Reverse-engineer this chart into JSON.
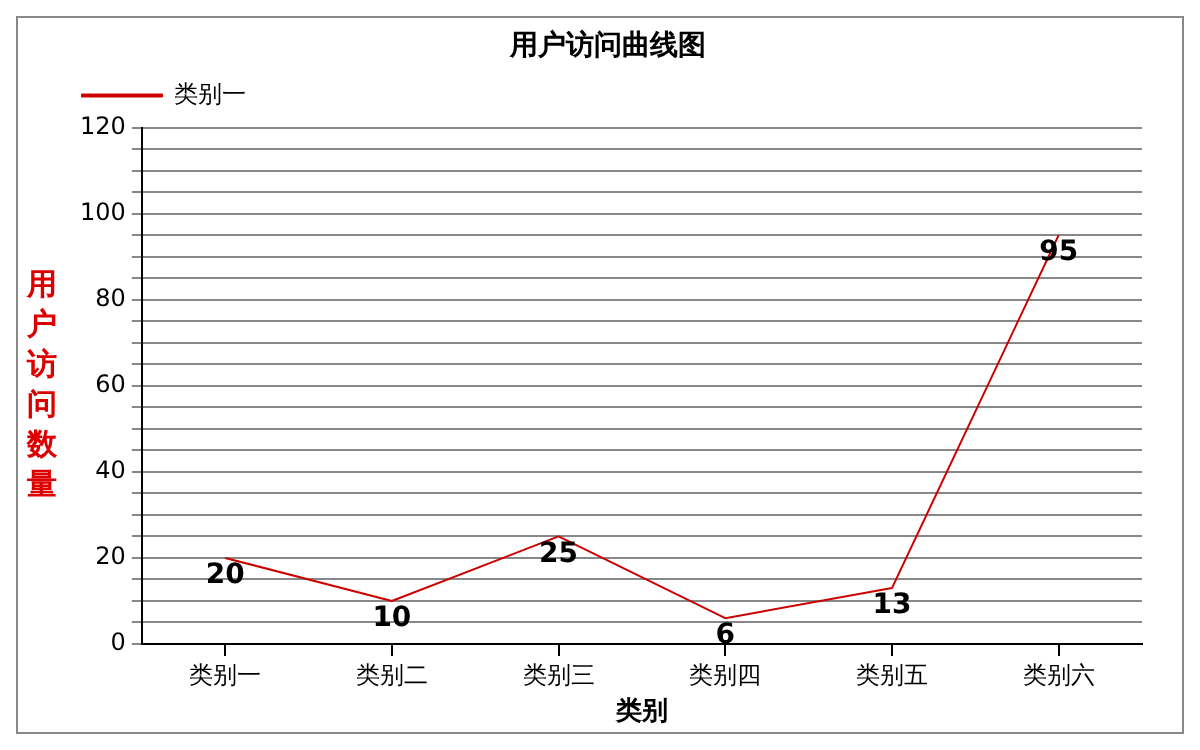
{
  "chart_data": {
    "type": "line",
    "title": "用户访问曲线图",
    "xlabel": "类别",
    "ylabel": "用户访问数量",
    "categories": [
      "类别一",
      "类别二",
      "类别三",
      "类别四",
      "类别五",
      "类别六"
    ],
    "series": [
      {
        "name": "类别一",
        "color": "#cc0000",
        "values": [
          20,
          10,
          25,
          6,
          13,
          95
        ]
      }
    ],
    "ylim": [
      0,
      120
    ],
    "yticks": [
      0,
      {
        "value": 5,
        "label": null
      },
      {
        "value": 10,
        "label": null
      },
      {
        "value": 15,
        "label": null
      },
      20,
      {
        "value": 25,
        "label": null
      },
      {
        "value": 30,
        "label": null
      },
      {
        "value": 35,
        "label": null
      },
      40,
      {
        "value": 45,
        "label": null
      },
      {
        "value": 50,
        "label": null
      },
      {
        "value": 55,
        "label": null
      },
      60,
      {
        "value": 65,
        "label": null
      },
      {
        "value": 70,
        "label": null
      },
      {
        "value": 75,
        "label": null
      },
      80,
      {
        "value": 85,
        "label": null
      },
      {
        "value": 90,
        "label": null
      },
      {
        "value": 95,
        "label": null
      },
      100,
      {
        "value": 105,
        "label": null
      },
      {
        "value": 110,
        "label": null
      },
      {
        "value": 115,
        "label": null
      },
      120
    ],
    "grid": "y",
    "legend": "top left",
    "marker": "none",
    "line_style": "solid",
    "data_labels": true
  }
}
